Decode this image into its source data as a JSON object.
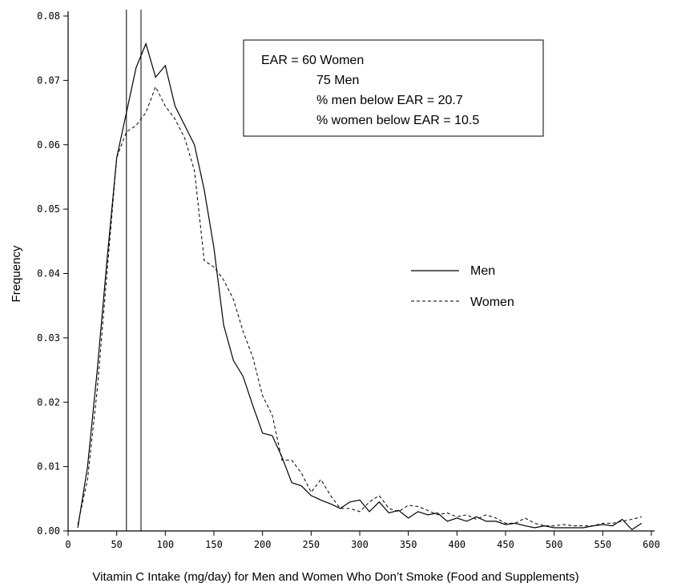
{
  "chart_data": {
    "type": "line",
    "xlabel": "Vitamin C Intake (mg/day) for Men and Women Who Don’t Smoke (Food and Supplements)",
    "ylabel": "Frequency",
    "xlim": [
      0,
      600
    ],
    "ylim": [
      0,
      0.08
    ],
    "x_ticks": [
      0,
      50,
      100,
      150,
      200,
      250,
      300,
      350,
      400,
      450,
      500,
      550,
      600
    ],
    "y_ticks": [
      0.0,
      0.01,
      0.02,
      0.03,
      0.04,
      0.05,
      0.06,
      0.07,
      0.08
    ],
    "y_tick_labels": [
      "0.00",
      "0.01",
      "0.02",
      "0.03",
      "0.04",
      "0.05",
      "0.06",
      "0.07",
      "0.08"
    ],
    "vertical_lines": [
      60,
      75
    ],
    "annotation_box": {
      "lines": [
        "EAR = 60 Women",
        "75 Men",
        "% men below EAR = 20.7",
        "% women below EAR = 10.5"
      ]
    },
    "legend_position": "right",
    "series": [
      {
        "name": "Men",
        "style": "solid",
        "x": [
          10,
          20,
          30,
          40,
          50,
          60,
          70,
          80,
          90,
          100,
          110,
          120,
          130,
          140,
          150,
          160,
          170,
          180,
          190,
          200,
          210,
          220,
          230,
          240,
          250,
          260,
          270,
          280,
          290,
          300,
          310,
          320,
          330,
          340,
          350,
          360,
          370,
          380,
          390,
          400,
          410,
          420,
          430,
          440,
          450,
          460,
          470,
          480,
          490,
          500,
          510,
          520,
          530,
          540,
          550,
          560,
          570,
          580,
          590
        ],
        "y": [
          0.0005,
          0.01,
          0.025,
          0.042,
          0.058,
          0.065,
          0.072,
          0.0757,
          0.0705,
          0.0723,
          0.066,
          0.063,
          0.06,
          0.053,
          0.044,
          0.032,
          0.0265,
          0.024,
          0.0195,
          0.0152,
          0.0148,
          0.0115,
          0.0075,
          0.007,
          0.0055,
          0.0048,
          0.0042,
          0.0035,
          0.0045,
          0.0048,
          0.003,
          0.0045,
          0.0028,
          0.0032,
          0.002,
          0.003,
          0.0025,
          0.0028,
          0.0015,
          0.002,
          0.0015,
          0.0022,
          0.0015,
          0.0015,
          0.001,
          0.0012,
          0.0008,
          0.0005,
          0.0008,
          0.0005,
          0.0005,
          0.0005,
          0.0005,
          0.0008,
          0.001,
          0.0008,
          0.0018,
          0.0002,
          0.0012
        ]
      },
      {
        "name": "Women",
        "style": "dashed",
        "x": [
          10,
          20,
          30,
          40,
          50,
          60,
          70,
          80,
          90,
          100,
          110,
          120,
          130,
          140,
          150,
          160,
          170,
          180,
          190,
          200,
          210,
          220,
          230,
          240,
          250,
          260,
          270,
          280,
          290,
          300,
          310,
          320,
          330,
          340,
          350,
          360,
          370,
          380,
          390,
          400,
          410,
          420,
          430,
          440,
          450,
          460,
          470,
          480,
          490,
          500,
          510,
          520,
          530,
          540,
          550,
          560,
          570,
          580,
          590
        ],
        "y": [
          0.001,
          0.008,
          0.022,
          0.04,
          0.058,
          0.062,
          0.063,
          0.065,
          0.069,
          0.066,
          0.064,
          0.061,
          0.056,
          0.042,
          0.041,
          0.039,
          0.036,
          0.031,
          0.027,
          0.021,
          0.018,
          0.011,
          0.011,
          0.009,
          0.006,
          0.008,
          0.0055,
          0.0035,
          0.0035,
          0.003,
          0.0045,
          0.0055,
          0.0035,
          0.003,
          0.004,
          0.0038,
          0.0032,
          0.0025,
          0.0028,
          0.0022,
          0.0025,
          0.0018,
          0.0025,
          0.002,
          0.0012,
          0.0012,
          0.002,
          0.0012,
          0.0008,
          0.0008,
          0.001,
          0.0008,
          0.0008,
          0.0008,
          0.0012,
          0.0012,
          0.0015,
          0.0018,
          0.0022
        ]
      }
    ]
  }
}
